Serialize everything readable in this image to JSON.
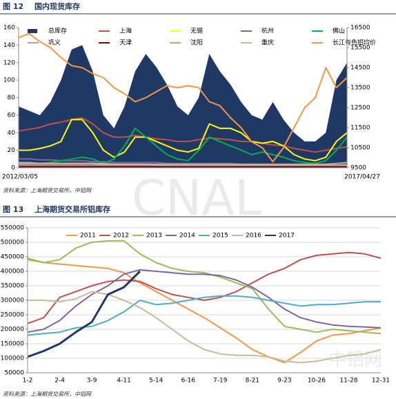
{
  "watermarks": [
    "CNAL",
    "中铝网"
  ],
  "chart_data": [
    {
      "type": "combo",
      "figure_label": "图 12",
      "title": "国内现货库存",
      "source": "资料来源：上海期货交易所，中铝网",
      "categories": [
        "2012/03/05",
        null,
        null,
        null,
        null,
        null,
        null,
        null,
        null,
        null,
        null,
        null,
        null,
        null,
        null,
        null,
        null,
        null,
        null,
        null,
        null,
        null,
        null,
        null,
        null,
        null,
        null,
        null,
        null,
        null,
        null,
        "2017/04/27"
      ],
      "ylim": [
        0,
        160
      ],
      "yticks": [
        0,
        20,
        40,
        60,
        80,
        100,
        120,
        140,
        160
      ],
      "y2lim": [
        9500,
        16500
      ],
      "y2ticks": [
        9500,
        10500,
        11500,
        12500,
        13500,
        14500,
        15500,
        16500
      ],
      "grid": false,
      "series": [
        {
          "name": "总库存",
          "kind": "area",
          "color": "#1f3864",
          "values": [
            70,
            65,
            60,
            75,
            100,
            135,
            140,
            110,
            60,
            45,
            70,
            110,
            130,
            115,
            95,
            70,
            60,
            80,
            130,
            110,
            95,
            75,
            60,
            55,
            75,
            55,
            40,
            30,
            30,
            40,
            100,
            120
          ]
        },
        {
          "name": "上海",
          "kind": "line",
          "color": "#c0504d",
          "values": [
            42,
            44,
            46,
            50,
            52,
            55,
            57,
            50,
            40,
            35,
            35,
            37,
            35,
            33,
            32,
            30,
            30,
            32,
            34,
            33,
            32,
            30,
            30,
            28,
            26,
            25,
            22,
            20,
            18,
            20,
            22,
            24
          ]
        },
        {
          "name": "无锡",
          "kind": "line",
          "color": "#ffff00",
          "values": [
            20,
            20,
            22,
            25,
            30,
            55,
            55,
            40,
            20,
            12,
            18,
            35,
            35,
            30,
            25,
            20,
            18,
            22,
            50,
            45,
            45,
            40,
            30,
            28,
            30,
            25,
            15,
            10,
            8,
            12,
            30,
            40
          ]
        },
        {
          "name": "杭州",
          "kind": "line",
          "color": "#8064a2",
          "values": [
            10,
            10,
            9,
            9,
            8,
            8,
            8,
            7,
            7,
            6,
            6,
            6,
            6,
            6,
            5,
            5,
            5,
            5,
            5,
            5,
            5,
            4,
            4,
            4,
            4,
            4,
            4,
            4,
            4,
            4,
            5,
            5
          ]
        },
        {
          "name": "佛山",
          "kind": "line",
          "color": "#00b050",
          "values": [
            5,
            5,
            5,
            6,
            8,
            10,
            12,
            10,
            5,
            10,
            25,
            45,
            35,
            25,
            15,
            10,
            8,
            20,
            35,
            30,
            25,
            20,
            15,
            18,
            15,
            12,
            8,
            6,
            5,
            8,
            20,
            35
          ]
        },
        {
          "name": "巩义",
          "kind": "line",
          "color": "#a6a6a6",
          "values": [
            6,
            6,
            5,
            5,
            5,
            5,
            5,
            5,
            5,
            4,
            4,
            4,
            4,
            4,
            4,
            4,
            4,
            4,
            4,
            4,
            4,
            4,
            4,
            4,
            4,
            4,
            4,
            4,
            4,
            4,
            5,
            6
          ]
        },
        {
          "name": "天津",
          "kind": "line",
          "color": "#8b0000",
          "values": [
            1,
            1,
            1,
            1,
            1,
            1,
            1,
            1,
            1,
            1,
            1,
            1,
            1,
            1,
            1,
            1,
            1,
            1,
            1,
            1,
            1,
            1,
            1,
            1,
            1,
            1,
            1,
            1,
            1,
            1,
            1,
            1
          ]
        },
        {
          "name": "沈阳",
          "kind": "line",
          "color": "#d99694",
          "values": [
            3,
            3,
            3,
            3,
            3,
            3,
            3,
            3,
            3,
            3,
            3,
            3,
            3,
            3,
            3,
            3,
            3,
            3,
            3,
            3,
            3,
            3,
            3,
            3,
            3,
            3,
            3,
            3,
            3,
            3,
            3,
            3
          ]
        },
        {
          "name": "重庆",
          "kind": "line",
          "color": "#c4bd97",
          "values": [
            5,
            5,
            5,
            5,
            5,
            5,
            5,
            5,
            4,
            4,
            4,
            4,
            4,
            3,
            3,
            3,
            3,
            3,
            3,
            3,
            3,
            3,
            3,
            3,
            3,
            3,
            3,
            3,
            3,
            3,
            3,
            3
          ]
        },
        {
          "name": "长江有色铝均价",
          "kind": "line",
          "axis": "y2",
          "color": "#f79646",
          "values": [
            16000,
            16200,
            15800,
            15500,
            15000,
            14600,
            14500,
            14200,
            14000,
            13500,
            13200,
            12800,
            13000,
            13300,
            13600,
            13500,
            13600,
            13500,
            12800,
            12600,
            12000,
            11500,
            10800,
            10500,
            9800,
            10500,
            11500,
            12500,
            13000,
            14500,
            13500,
            14000
          ]
        }
      ]
    },
    {
      "type": "line",
      "figure_label": "图 13",
      "title": "上海期货交易所铝库存",
      "source": "资料来源：上海期货交易所，中铝网",
      "categories": [
        "1-2",
        null,
        "2-4",
        null,
        "3-9",
        null,
        "4-11",
        null,
        "5-14",
        null,
        "6-16",
        null,
        "7-19",
        null,
        "8-21",
        null,
        "9-23",
        null,
        "10-26",
        null,
        "11-28",
        null,
        "12-31"
      ],
      "ylim": [
        50000,
        550000
      ],
      "yticks": [
        50000,
        100000,
        150000,
        200000,
        250000,
        300000,
        350000,
        400000,
        450000,
        500000,
        550000
      ],
      "grid": true,
      "series": [
        {
          "name": "2011",
          "color": "#f79646",
          "values": [
            440000,
            430000,
            425000,
            420000,
            415000,
            410000,
            395000,
            360000,
            330000,
            300000,
            270000,
            240000,
            205000,
            170000,
            130000,
            105000,
            85000,
            120000,
            160000,
            180000,
            185000,
            195000,
            205000
          ]
        },
        {
          "name": "2012",
          "color": "#c0504d",
          "values": [
            220000,
            240000,
            310000,
            330000,
            350000,
            365000,
            370000,
            365000,
            340000,
            320000,
            310000,
            300000,
            310000,
            330000,
            360000,
            390000,
            410000,
            440000,
            455000,
            460000,
            465000,
            460000,
            445000
          ]
        },
        {
          "name": "2013",
          "color": "#9bbb59",
          "values": [
            445000,
            430000,
            440000,
            480000,
            500000,
            505000,
            505000,
            460000,
            430000,
            410000,
            400000,
            395000,
            380000,
            360000,
            340000,
            270000,
            210000,
            200000,
            190000,
            200000,
            195000,
            190000,
            185000
          ]
        },
        {
          "name": "2014",
          "color": "#8064a2",
          "values": [
            190000,
            200000,
            230000,
            280000,
            320000,
            350000,
            390000,
            405000,
            400000,
            395000,
            390000,
            390000,
            385000,
            370000,
            345000,
            310000,
            270000,
            240000,
            225000,
            215000,
            210000,
            208000,
            205000
          ]
        },
        {
          "name": "2015",
          "color": "#4bacc6",
          "values": [
            180000,
            185000,
            190000,
            205000,
            210000,
            230000,
            260000,
            300000,
            285000,
            290000,
            300000,
            310000,
            315000,
            315000,
            310000,
            300000,
            290000,
            280000,
            285000,
            285000,
            290000,
            295000,
            295000
          ]
        },
        {
          "name": "2016",
          "color": "#c4bd97",
          "values": [
            300000,
            300000,
            295000,
            305000,
            330000,
            320000,
            300000,
            275000,
            240000,
            200000,
            160000,
            130000,
            115000,
            110000,
            110000,
            105000,
            90000,
            85000,
            90000,
            100000,
            110000,
            115000,
            130000
          ]
        },
        {
          "name": "2017",
          "color": "#1f3864",
          "width": 3,
          "values": [
            105000,
            125000,
            150000,
            190000,
            225000,
            320000,
            345000,
            400000,
            null,
            null,
            null,
            null,
            null,
            null,
            null,
            null,
            null,
            null,
            null,
            null,
            null,
            null,
            null
          ]
        }
      ]
    }
  ]
}
